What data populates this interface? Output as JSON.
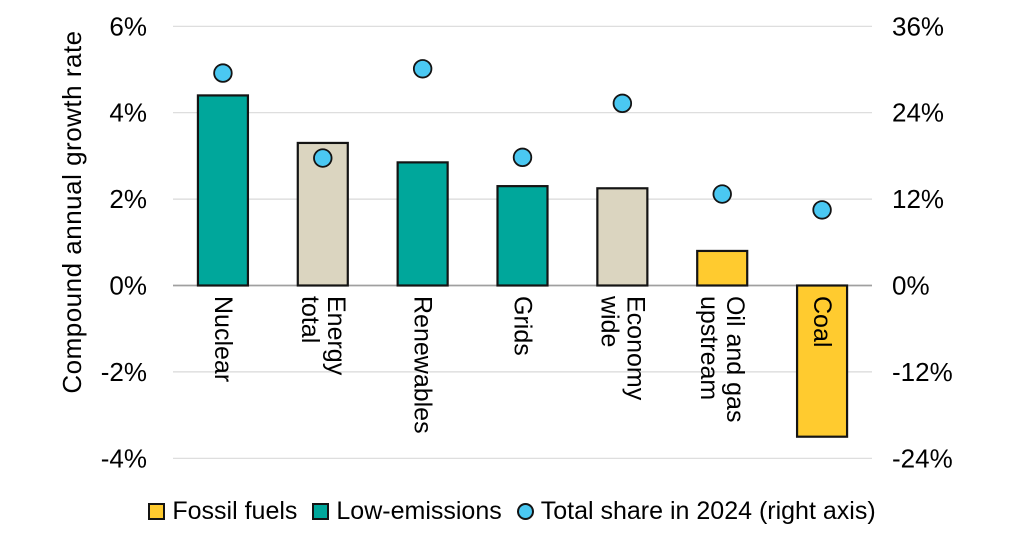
{
  "chart_data": {
    "type": "bar",
    "subtype": "bar-with-scatter-overlay",
    "title": "",
    "categories": [
      {
        "label": "Nuclear",
        "lines": [
          "Nuclear"
        ],
        "group": "low-emissions"
      },
      {
        "label": "Energy total",
        "lines": [
          "Energy",
          "total"
        ],
        "group": "total"
      },
      {
        "label": "Renewables",
        "lines": [
          "Renewables"
        ],
        "group": "low-emissions"
      },
      {
        "label": "Grids",
        "lines": [
          "Grids"
        ],
        "group": "low-emissions"
      },
      {
        "label": "Economy wide",
        "lines": [
          "Economy",
          "wide"
        ],
        "group": "total"
      },
      {
        "label": "Oil and gas upstream",
        "lines": [
          "Oil and gas",
          "upstream"
        ],
        "group": "fossil"
      },
      {
        "label": "Coal",
        "lines": [
          "Coal"
        ],
        "group": "fossil"
      }
    ],
    "series": [
      {
        "name": "Compound annual growth rate",
        "type": "bar",
        "axis": "left",
        "values": [
          4.4,
          3.3,
          2.85,
          2.3,
          2.25,
          0.8,
          -3.5
        ]
      },
      {
        "name": "Total share in 2024 (right axis)",
        "type": "scatter",
        "axis": "right",
        "values": [
          29.5,
          17.7,
          30.1,
          17.8,
          25.3,
          12.7,
          10.5
        ]
      }
    ],
    "left_axis": {
      "title": "Compound annual growth rate",
      "min": -4,
      "max": 6,
      "step": 2,
      "tick_values": [
        6,
        4,
        2,
        0,
        -2,
        -4
      ],
      "tick_labels": [
        "6%",
        "4%",
        "2%",
        "0%",
        "-2%",
        "-4%"
      ]
    },
    "right_axis": {
      "min": -24,
      "max": 36,
      "step": 12,
      "tick_values": [
        36,
        24,
        12,
        0,
        -12,
        -24
      ],
      "tick_labels": [
        "36%",
        "24%",
        "12%",
        "0%",
        "-12%",
        "-24%"
      ]
    },
    "legend": [
      {
        "label": "Fossil fuels",
        "marker": "square",
        "color_key": "fossil"
      },
      {
        "label": "Low-emissions",
        "marker": "square",
        "color_key": "low-emissions"
      },
      {
        "label": "Total share in 2024 (right axis)",
        "marker": "circle",
        "color_key": "dot"
      }
    ],
    "legend_position": "bottom",
    "grid": true,
    "colors": {
      "fossil": "#FFCB2F",
      "low-emissions": "#00A79B",
      "total": "#DBD5C0",
      "dot": "#4AC8F2",
      "outline": "#141414",
      "gridline": "#D9D9D9",
      "zero_line": "#A0A0A0",
      "text": "#000000",
      "background": "#FFFFFF"
    }
  }
}
